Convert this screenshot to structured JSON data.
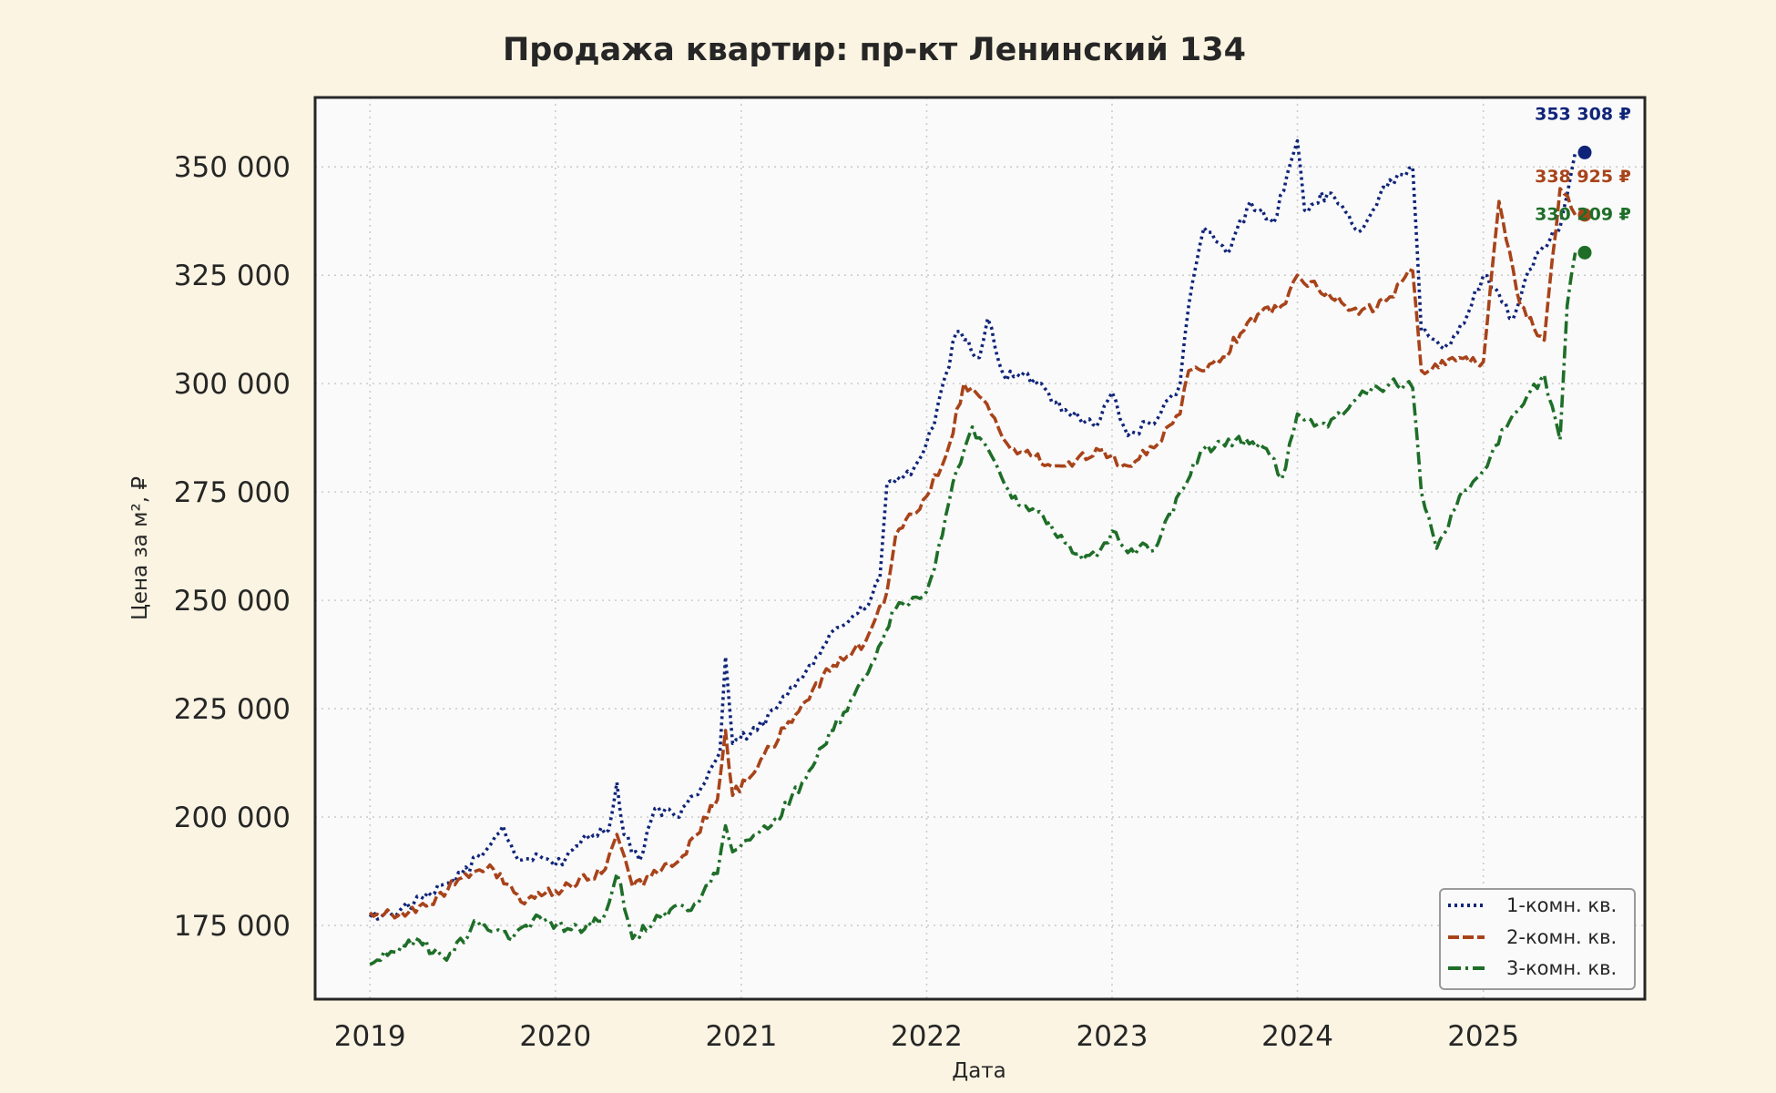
{
  "chart_data": {
    "type": "line",
    "title": "Продажа квартир: пр-кт Ленинский 134",
    "xlabel": "Дата",
    "ylabel": "Цена за м², ₽",
    "x_ticks": [
      "2019",
      "2020",
      "2021",
      "2022",
      "2023",
      "2024",
      "2025"
    ],
    "y_ticks": [
      "175 000",
      "200 000",
      "225 000",
      "250 000",
      "275 000",
      "300 000",
      "325 000",
      "350 000"
    ],
    "xlim": [
      "2018-09-15",
      "2025-11-15"
    ],
    "ylim": [
      158000,
      366000
    ],
    "grid": true,
    "legend_position": "bottom-right",
    "series": [
      {
        "name": "1-комн. кв.",
        "color": "#0f2479",
        "style": "dotted",
        "end_label": "353 308 ₽",
        "end_value": 353308,
        "points": [
          [
            "2019-01-01",
            177000
          ],
          [
            "2019-03-01",
            178500
          ],
          [
            "2019-05-01",
            182000
          ],
          [
            "2019-07-01",
            187000
          ],
          [
            "2019-08-15",
            192000
          ],
          [
            "2019-09-20",
            198000
          ],
          [
            "2019-10-20",
            190000
          ],
          [
            "2019-12-01",
            191000
          ],
          [
            "2020-01-15",
            189000
          ],
          [
            "2020-03-01",
            196000
          ],
          [
            "2020-04-15",
            197000
          ],
          [
            "2020-05-01",
            208000
          ],
          [
            "2020-05-15",
            196000
          ],
          [
            "2020-06-15",
            190000
          ],
          [
            "2020-07-15",
            202000
          ],
          [
            "2020-09-01",
            200000
          ],
          [
            "2020-10-15",
            207000
          ],
          [
            "2020-11-20",
            215000
          ],
          [
            "2020-12-01",
            237000
          ],
          [
            "2020-12-15",
            217000
          ],
          [
            "2021-02-01",
            220000
          ],
          [
            "2021-04-01",
            228000
          ],
          [
            "2021-05-15",
            235000
          ],
          [
            "2021-07-01",
            243000
          ],
          [
            "2021-09-01",
            248000
          ],
          [
            "2021-10-01",
            255000
          ],
          [
            "2021-10-15",
            277000
          ],
          [
            "2021-12-01",
            279000
          ],
          [
            "2022-01-15",
            290000
          ],
          [
            "2022-03-01",
            312000
          ],
          [
            "2022-04-15",
            306000
          ],
          [
            "2022-05-01",
            315000
          ],
          [
            "2022-06-01",
            302000
          ],
          [
            "2022-08-01",
            301000
          ],
          [
            "2022-10-01",
            294000
          ],
          [
            "2022-12-01",
            290000
          ],
          [
            "2023-01-01",
            298000
          ],
          [
            "2023-02-01",
            288000
          ],
          [
            "2023-04-01",
            292000
          ],
          [
            "2023-05-15",
            300000
          ],
          [
            "2023-06-01",
            318000
          ],
          [
            "2023-07-01",
            336000
          ],
          [
            "2023-08-15",
            330000
          ],
          [
            "2023-10-01",
            342000
          ],
          [
            "2023-11-15",
            337000
          ],
          [
            "2024-01-01",
            356000
          ],
          [
            "2024-01-15",
            340000
          ],
          [
            "2024-03-01",
            344000
          ],
          [
            "2024-05-01",
            335000
          ],
          [
            "2024-07-01",
            347000
          ],
          [
            "2024-08-01",
            348000
          ],
          [
            "2024-08-15",
            350000
          ],
          [
            "2024-09-01",
            312000
          ],
          [
            "2024-10-15",
            308000
          ],
          [
            "2024-12-01",
            316000
          ],
          [
            "2025-01-01",
            325000
          ],
          [
            "2025-03-01",
            315000
          ],
          [
            "2025-04-15",
            330000
          ],
          [
            "2025-06-01",
            336000
          ],
          [
            "2025-07-01",
            353308
          ]
        ]
      },
      {
        "name": "2-комн. кв.",
        "color": "#a8431a",
        "style": "dashed",
        "end_label": "338 925 ₽",
        "end_value": 338925,
        "points": [
          [
            "2019-01-01",
            178000
          ],
          [
            "2019-04-01",
            178000
          ],
          [
            "2019-07-01",
            186000
          ],
          [
            "2019-09-01",
            188000
          ],
          [
            "2019-11-01",
            180000
          ],
          [
            "2020-01-01",
            183000
          ],
          [
            "2020-04-01",
            187000
          ],
          [
            "2020-05-01",
            196000
          ],
          [
            "2020-06-01",
            184000
          ],
          [
            "2020-09-01",
            190000
          ],
          [
            "2020-11-15",
            204000
          ],
          [
            "2020-12-01",
            220000
          ],
          [
            "2020-12-15",
            205000
          ],
          [
            "2021-03-01",
            216000
          ],
          [
            "2021-05-01",
            226000
          ],
          [
            "2021-07-01",
            235000
          ],
          [
            "2021-09-01",
            240000
          ],
          [
            "2021-10-15",
            252000
          ],
          [
            "2021-11-01",
            265000
          ],
          [
            "2022-01-01",
            274000
          ],
          [
            "2022-02-15",
            286000
          ],
          [
            "2022-03-15",
            300000
          ],
          [
            "2022-04-15",
            297000
          ],
          [
            "2022-05-15",
            292000
          ],
          [
            "2022-06-15",
            285000
          ],
          [
            "2022-08-01",
            283000
          ],
          [
            "2022-10-01",
            281000
          ],
          [
            "2022-12-01",
            285000
          ],
          [
            "2023-02-01",
            281000
          ],
          [
            "2023-04-01",
            286000
          ],
          [
            "2023-05-15",
            293000
          ],
          [
            "2023-06-01",
            303000
          ],
          [
            "2023-08-01",
            305000
          ],
          [
            "2023-10-01",
            315000
          ],
          [
            "2023-12-01",
            318000
          ],
          [
            "2024-01-01",
            325000
          ],
          [
            "2024-03-01",
            321000
          ],
          [
            "2024-05-01",
            316000
          ],
          [
            "2024-07-01",
            320000
          ],
          [
            "2024-08-15",
            326000
          ],
          [
            "2024-09-01",
            303000
          ],
          [
            "2024-11-01",
            306000
          ],
          [
            "2025-01-01",
            305000
          ],
          [
            "2025-02-01",
            342000
          ],
          [
            "2025-03-15",
            318000
          ],
          [
            "2025-05-01",
            310000
          ],
          [
            "2025-06-01",
            345000
          ],
          [
            "2025-07-01",
            338925
          ]
        ]
      },
      {
        "name": "3-комн. кв.",
        "color": "#1e6e28",
        "style": "dash-dot",
        "end_label": "330 209 ₽",
        "end_value": 330209,
        "points": [
          [
            "2019-01-01",
            166000
          ],
          [
            "2019-04-01",
            172000
          ],
          [
            "2019-06-01",
            167000
          ],
          [
            "2019-08-01",
            176000
          ],
          [
            "2019-10-01",
            172000
          ],
          [
            "2019-12-01",
            177000
          ],
          [
            "2020-02-01",
            174000
          ],
          [
            "2020-04-01",
            176000
          ],
          [
            "2020-05-01",
            187000
          ],
          [
            "2020-06-01",
            172000
          ],
          [
            "2020-08-01",
            178000
          ],
          [
            "2020-10-01",
            180000
          ],
          [
            "2020-11-15",
            187000
          ],
          [
            "2020-12-01",
            198000
          ],
          [
            "2020-12-15",
            192000
          ],
          [
            "2021-03-01",
            198000
          ],
          [
            "2021-05-01",
            208000
          ],
          [
            "2021-07-01",
            220000
          ],
          [
            "2021-09-01",
            232000
          ],
          [
            "2021-11-01",
            248000
          ],
          [
            "2022-01-01",
            252000
          ],
          [
            "2022-02-01",
            265000
          ],
          [
            "2022-03-01",
            280000
          ],
          [
            "2022-04-01",
            290000
          ],
          [
            "2022-05-15",
            282000
          ],
          [
            "2022-07-01",
            272000
          ],
          [
            "2022-09-01",
            268000
          ],
          [
            "2022-10-15",
            261000
          ],
          [
            "2022-12-01",
            260000
          ],
          [
            "2023-01-01",
            266000
          ],
          [
            "2023-02-01",
            261000
          ],
          [
            "2023-04-01",
            263000
          ],
          [
            "2023-05-15",
            275000
          ],
          [
            "2023-07-01",
            285000
          ],
          [
            "2023-09-01",
            287000
          ],
          [
            "2023-11-01",
            285000
          ],
          [
            "2023-12-01",
            278000
          ],
          [
            "2024-01-01",
            293000
          ],
          [
            "2024-03-01",
            290000
          ],
          [
            "2024-05-01",
            297000
          ],
          [
            "2024-07-01",
            300000
          ],
          [
            "2024-08-15",
            299000
          ],
          [
            "2024-09-01",
            275000
          ],
          [
            "2024-10-01",
            262000
          ],
          [
            "2024-11-15",
            274000
          ],
          [
            "2025-01-01",
            280000
          ],
          [
            "2025-03-01",
            293000
          ],
          [
            "2025-05-01",
            302000
          ],
          [
            "2025-06-01",
            287000
          ],
          [
            "2025-06-15",
            318000
          ],
          [
            "2025-07-01",
            330209
          ]
        ]
      }
    ]
  }
}
